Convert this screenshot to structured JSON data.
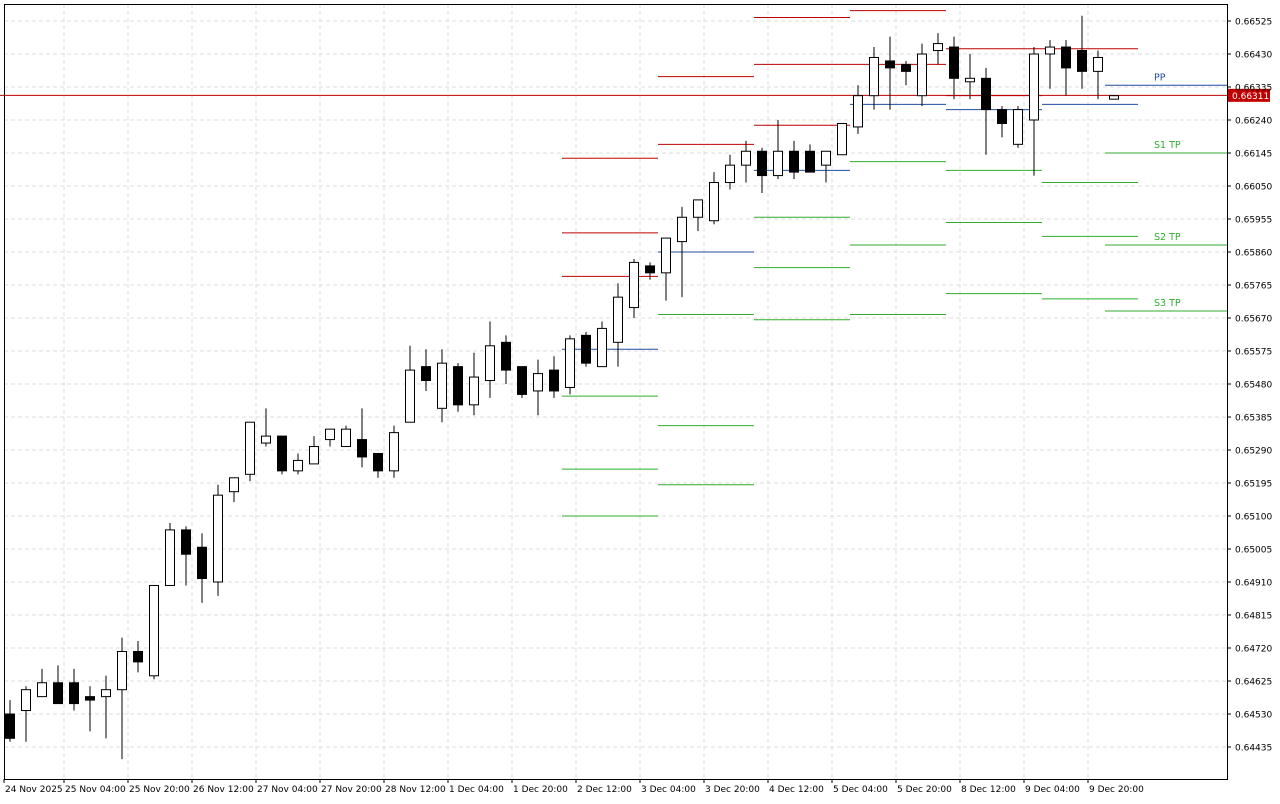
{
  "chart_data": {
    "type": "candlestick",
    "timeframe_axis_labels": [
      "24 Nov 2025",
      "25 Nov 04:00",
      "25 Nov 20:00",
      "26 Nov 12:00",
      "27 Nov 04:00",
      "27 Nov 20:00",
      "28 Nov 12:00",
      "1 Dec 04:00",
      "1 Dec 20:00",
      "2 Dec 12:00",
      "3 Dec 04:00",
      "3 Dec 20:00",
      "4 Dec 12:00",
      "5 Dec 04:00",
      "5 Dec 20:00",
      "8 Dec 12:00",
      "9 Dec 04:00",
      "9 Dec 20:00"
    ],
    "price_axis_labels": [
      "0.66525",
      "0.66430",
      "0.66335",
      "0.66240",
      "0.66145",
      "0.66050",
      "0.65955",
      "0.65860",
      "0.65765",
      "0.65670",
      "0.65575",
      "0.65480",
      "0.65385",
      "0.65290",
      "0.65195",
      "0.65100",
      "0.65005",
      "0.64910",
      "0.64815",
      "0.64720",
      "0.64625",
      "0.64530",
      "0.64435"
    ],
    "ylim": [
      0.6439,
      0.66555
    ],
    "grid": true,
    "current_price": "0.66311",
    "current_price_color": "#c00000",
    "candles": [
      {
        "o": 0.6453,
        "h": 0.6457,
        "l": 0.6445,
        "c": 0.6446
      },
      {
        "o": 0.6454,
        "h": 0.6461,
        "l": 0.6445,
        "c": 0.646
      },
      {
        "o": 0.6458,
        "h": 0.6466,
        "l": 0.6458,
        "c": 0.6462
      },
      {
        "o": 0.6462,
        "h": 0.6467,
        "l": 0.6457,
        "c": 0.6456
      },
      {
        "o": 0.6462,
        "h": 0.6466,
        "l": 0.6454,
        "c": 0.6456
      },
      {
        "o": 0.6458,
        "h": 0.6461,
        "l": 0.6448,
        "c": 0.6457
      },
      {
        "o": 0.6458,
        "h": 0.6464,
        "l": 0.6446,
        "c": 0.646
      },
      {
        "o": 0.646,
        "h": 0.6475,
        "l": 0.644,
        "c": 0.6471
      },
      {
        "o": 0.6471,
        "h": 0.6474,
        "l": 0.6465,
        "c": 0.6468
      },
      {
        "o": 0.6464,
        "h": 0.649,
        "l": 0.6463,
        "c": 0.649
      },
      {
        "o": 0.649,
        "h": 0.6508,
        "l": 0.649,
        "c": 0.6506
      },
      {
        "o": 0.6506,
        "h": 0.6507,
        "l": 0.649,
        "c": 0.6499
      },
      {
        "o": 0.6501,
        "h": 0.6505,
        "l": 0.6485,
        "c": 0.6492
      },
      {
        "o": 0.6491,
        "h": 0.6519,
        "l": 0.6487,
        "c": 0.6516
      },
      {
        "o": 0.6517,
        "h": 0.6521,
        "l": 0.6514,
        "c": 0.6521
      },
      {
        "o": 0.6522,
        "h": 0.6537,
        "l": 0.652,
        "c": 0.6537
      },
      {
        "o": 0.6531,
        "h": 0.6541,
        "l": 0.653,
        "c": 0.6533
      },
      {
        "o": 0.6533,
        "h": 0.6533,
        "l": 0.6522,
        "c": 0.6523
      },
      {
        "o": 0.6523,
        "h": 0.6528,
        "l": 0.6522,
        "c": 0.6526
      },
      {
        "o": 0.6525,
        "h": 0.6533,
        "l": 0.6525,
        "c": 0.653
      },
      {
        "o": 0.6532,
        "h": 0.6533,
        "l": 0.653,
        "c": 0.6535
      },
      {
        "o": 0.653,
        "h": 0.6536,
        "l": 0.653,
        "c": 0.6535
      },
      {
        "o": 0.6532,
        "h": 0.6541,
        "l": 0.6524,
        "c": 0.6527
      },
      {
        "o": 0.6528,
        "h": 0.6528,
        "l": 0.6521,
        "c": 0.6523
      },
      {
        "o": 0.6523,
        "h": 0.6536,
        "l": 0.6521,
        "c": 0.6534
      },
      {
        "o": 0.6537,
        "h": 0.6559,
        "l": 0.6537,
        "c": 0.6552
      },
      {
        "o": 0.6553,
        "h": 0.6558,
        "l": 0.6546,
        "c": 0.6549
      },
      {
        "o": 0.6541,
        "h": 0.6558,
        "l": 0.6537,
        "c": 0.6554
      },
      {
        "o": 0.6553,
        "h": 0.6554,
        "l": 0.654,
        "c": 0.6542
      },
      {
        "o": 0.6542,
        "h": 0.6557,
        "l": 0.6539,
        "c": 0.655
      },
      {
        "o": 0.6549,
        "h": 0.6566,
        "l": 0.6544,
        "c": 0.6559
      },
      {
        "o": 0.656,
        "h": 0.6562,
        "l": 0.6548,
        "c": 0.6552
      },
      {
        "o": 0.6553,
        "h": 0.6553,
        "l": 0.6544,
        "c": 0.6545
      },
      {
        "o": 0.6546,
        "h": 0.6555,
        "l": 0.6539,
        "c": 0.6551
      },
      {
        "o": 0.6552,
        "h": 0.6556,
        "l": 0.6544,
        "c": 0.6546
      },
      {
        "o": 0.6547,
        "h": 0.6562,
        "l": 0.6545,
        "c": 0.6561
      },
      {
        "o": 0.6562,
        "h": 0.6563,
        "l": 0.6553,
        "c": 0.6554
      },
      {
        "o": 0.6553,
        "h": 0.6566,
        "l": 0.6553,
        "c": 0.6564
      },
      {
        "o": 0.656,
        "h": 0.6577,
        "l": 0.6553,
        "c": 0.6573
      },
      {
        "o": 0.657,
        "h": 0.6584,
        "l": 0.6567,
        "c": 0.6583
      },
      {
        "o": 0.6582,
        "h": 0.6583,
        "l": 0.6578,
        "c": 0.658
      },
      {
        "o": 0.658,
        "h": 0.659,
        "l": 0.6572,
        "c": 0.659
      },
      {
        "o": 0.6589,
        "h": 0.6599,
        "l": 0.6573,
        "c": 0.6596
      },
      {
        "o": 0.6596,
        "h": 0.6601,
        "l": 0.6592,
        "c": 0.6601
      },
      {
        "o": 0.6595,
        "h": 0.6609,
        "l": 0.6594,
        "c": 0.6606
      },
      {
        "o": 0.6606,
        "h": 0.6614,
        "l": 0.6604,
        "c": 0.6611
      },
      {
        "o": 0.6611,
        "h": 0.6618,
        "l": 0.6606,
        "c": 0.6615
      },
      {
        "o": 0.6615,
        "h": 0.6616,
        "l": 0.6603,
        "c": 0.6608
      },
      {
        "o": 0.6608,
        "h": 0.6624,
        "l": 0.6607,
        "c": 0.6615
      },
      {
        "o": 0.6615,
        "h": 0.6618,
        "l": 0.6607,
        "c": 0.6609
      },
      {
        "o": 0.6615,
        "h": 0.6617,
        "l": 0.6609,
        "c": 0.6609
      },
      {
        "o": 0.6611,
        "h": 0.6613,
        "l": 0.6606,
        "c": 0.6615
      },
      {
        "o": 0.6614,
        "h": 0.6623,
        "l": 0.6614,
        "c": 0.6623
      },
      {
        "o": 0.6622,
        "h": 0.6634,
        "l": 0.662,
        "c": 0.6631
      },
      {
        "o": 0.6631,
        "h": 0.6645,
        "l": 0.6627,
        "c": 0.6642
      },
      {
        "o": 0.6641,
        "h": 0.6648,
        "l": 0.6627,
        "c": 0.6639
      },
      {
        "o": 0.664,
        "h": 0.6641,
        "l": 0.6634,
        "c": 0.6638
      },
      {
        "o": 0.6631,
        "h": 0.6646,
        "l": 0.6628,
        "c": 0.6643
      },
      {
        "o": 0.6644,
        "h": 0.6649,
        "l": 0.664,
        "c": 0.6646
      },
      {
        "o": 0.6645,
        "h": 0.6648,
        "l": 0.663,
        "c": 0.6636
      },
      {
        "o": 0.6635,
        "h": 0.6643,
        "l": 0.663,
        "c": 0.6636
      },
      {
        "o": 0.6636,
        "h": 0.6639,
        "l": 0.6614,
        "c": 0.6627
      },
      {
        "o": 0.6627,
        "h": 0.6628,
        "l": 0.6619,
        "c": 0.6623
      },
      {
        "o": 0.6617,
        "h": 0.6628,
        "l": 0.6616,
        "c": 0.6627
      },
      {
        "o": 0.6624,
        "h": 0.6645,
        "l": 0.6608,
        "c": 0.6643
      },
      {
        "o": 0.6643,
        "h": 0.6647,
        "l": 0.6633,
        "c": 0.6645
      },
      {
        "o": 0.6645,
        "h": 0.6647,
        "l": 0.6631,
        "c": 0.6639
      },
      {
        "o": 0.6644,
        "h": 0.6654,
        "l": 0.6633,
        "c": 0.6638
      },
      {
        "o": 0.6638,
        "h": 0.6644,
        "l": 0.663,
        "c": 0.6642
      },
      {
        "o": 0.663,
        "h": 0.6631,
        "l": 0.663,
        "c": 0.6631
      }
    ],
    "pivot_levels": [
      {
        "kind": "PP",
        "start": 35,
        "end": 40,
        "value": 0.6558
      },
      {
        "kind": "R1",
        "start": 35,
        "end": 40,
        "value": 0.6579
      },
      {
        "kind": "R2",
        "start": 35,
        "end": 40,
        "value": 0.65915
      },
      {
        "kind": "R3",
        "start": 35,
        "end": 40,
        "value": 0.6613
      },
      {
        "kind": "S1",
        "start": 35,
        "end": 40,
        "value": 0.65445
      },
      {
        "kind": "S2",
        "start": 35,
        "end": 40,
        "value": 0.65235
      },
      {
        "kind": "S3",
        "start": 35,
        "end": 40,
        "value": 0.651
      },
      {
        "kind": "PP",
        "start": 41,
        "end": 46,
        "value": 0.6586
      },
      {
        "kind": "R1",
        "start": 41,
        "end": 46,
        "value": 0.6617
      },
      {
        "kind": "R2",
        "start": 41,
        "end": 46,
        "value": 0.66365
      },
      {
        "kind": "S1",
        "start": 41,
        "end": 46,
        "value": 0.6568
      },
      {
        "kind": "S2",
        "start": 41,
        "end": 46,
        "value": 0.6536
      },
      {
        "kind": "S3",
        "start": 41,
        "end": 46,
        "value": 0.6519
      },
      {
        "kind": "PP",
        "start": 47,
        "end": 52,
        "value": 0.66095
      },
      {
        "kind": "R1",
        "start": 47,
        "end": 52,
        "value": 0.66225
      },
      {
        "kind": "R2",
        "start": 47,
        "end": 52,
        "value": 0.664
      },
      {
        "kind": "R3",
        "start": 47,
        "end": 52,
        "value": 0.66535
      },
      {
        "kind": "S1",
        "start": 47,
        "end": 52,
        "value": 0.6596
      },
      {
        "kind": "S2",
        "start": 47,
        "end": 52,
        "value": 0.65815
      },
      {
        "kind": "S3",
        "start": 47,
        "end": 52,
        "value": 0.65665
      },
      {
        "kind": "PP",
        "start": 53,
        "end": 58,
        "value": 0.66285
      },
      {
        "kind": "R1",
        "start": 53,
        "end": 58,
        "value": 0.664
      },
      {
        "kind": "R2",
        "start": 53,
        "end": 58,
        "value": 0.66555
      },
      {
        "kind": "S1",
        "start": 53,
        "end": 58,
        "value": 0.6612
      },
      {
        "kind": "S2",
        "start": 53,
        "end": 58,
        "value": 0.6588
      },
      {
        "kind": "S3",
        "start": 53,
        "end": 58,
        "value": 0.6568
      },
      {
        "kind": "PP",
        "start": 59,
        "end": 64,
        "value": 0.6627
      },
      {
        "kind": "R1",
        "start": 59,
        "end": 64,
        "value": 0.6631
      },
      {
        "kind": "R2",
        "start": 59,
        "end": 64,
        "value": 0.66445
      },
      {
        "kind": "S1",
        "start": 59,
        "end": 64,
        "value": 0.66095
      },
      {
        "kind": "S2",
        "start": 59,
        "end": 64,
        "value": 0.65945
      },
      {
        "kind": "S3",
        "start": 59,
        "end": 64,
        "value": 0.6574
      },
      {
        "kind": "PP",
        "start": 65,
        "end": 70,
        "value": 0.66285
      },
      {
        "kind": "R1",
        "start": 65,
        "end": 70,
        "value": 0.66445
      },
      {
        "kind": "S1",
        "start": 65,
        "end": 70,
        "value": 0.6606
      },
      {
        "kind": "S2",
        "start": 65,
        "end": 70,
        "value": 0.65905
      },
      {
        "kind": "S3",
        "start": 65,
        "end": 70,
        "value": 0.65725
      }
    ],
    "current_pivot": [
      {
        "kind": "PP",
        "value": 0.6634,
        "label": "PP"
      },
      {
        "kind": "S1",
        "value": 0.66145,
        "label": "S1 TP"
      },
      {
        "kind": "S2",
        "value": 0.6588,
        "label": "S2 TP"
      },
      {
        "kind": "S3",
        "value": 0.6569,
        "label": "S3 TP"
      }
    ],
    "colors": {
      "resistance": "#c00000",
      "pivot": "#1f4fa0",
      "support": "#2fae2f",
      "grid": "#dcdcdc",
      "axis": "#000000",
      "bull_body": "#ffffff",
      "bear_body": "#000000"
    }
  }
}
